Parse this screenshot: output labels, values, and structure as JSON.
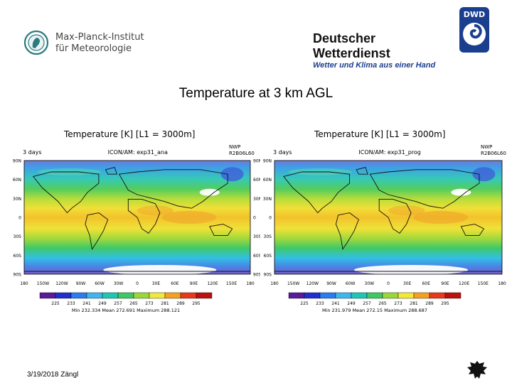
{
  "header": {
    "mpi_line1": "Max-Planck-Institut",
    "mpi_line2": "für Meteorologie",
    "dwd_title": "Deutscher Wetterdienst",
    "dwd_subtitle": "Wetter und Klima aus einer Hand",
    "dwd_badge": "DWD"
  },
  "slide": {
    "title": "Temperature at 3 km AGL"
  },
  "maps": [
    {
      "title": "Temperature [K]   [L1 = 3000m]",
      "left_label": "3 days",
      "center_label": "ICON/AM: exp31_ana",
      "right_label_1": "NWP",
      "right_label_2": "R2B06L60",
      "stats": "Min 232.334  Mean 272.691  Maximum 288.121"
    },
    {
      "title": "Temperature [K]   [L1 = 3000m]",
      "left_label": "3 days",
      "center_label": "ICON/AM: exp31_prog",
      "right_label_1": "NWP",
      "right_label_2": "R2B06L60",
      "stats": "Min 231.979  Mean 272.15  Maximum 288.687"
    }
  ],
  "axes": {
    "lat_labels": [
      "90N",
      "60N",
      "30N",
      "0",
      "30S",
      "60S",
      "90S"
    ],
    "lon_labels": [
      "180",
      "150W",
      "120W",
      "90W",
      "60W",
      "30W",
      "0",
      "30E",
      "60E",
      "90E",
      "120E",
      "150E",
      "180"
    ]
  },
  "colorbar": {
    "labels": [
      "225",
      "233",
      "241",
      "249",
      "257",
      "265",
      "273",
      "281",
      "289",
      "295"
    ],
    "colors": [
      "#5a1a9a",
      "#1f2fd0",
      "#2a7cf0",
      "#3fb6ee",
      "#20c6b4",
      "#3fc864",
      "#9ad83a",
      "#f2e83a",
      "#f5a020",
      "#e83a1a",
      "#bf1010"
    ]
  },
  "footer": {
    "date_author": "3/19/2018 Zängl"
  }
}
